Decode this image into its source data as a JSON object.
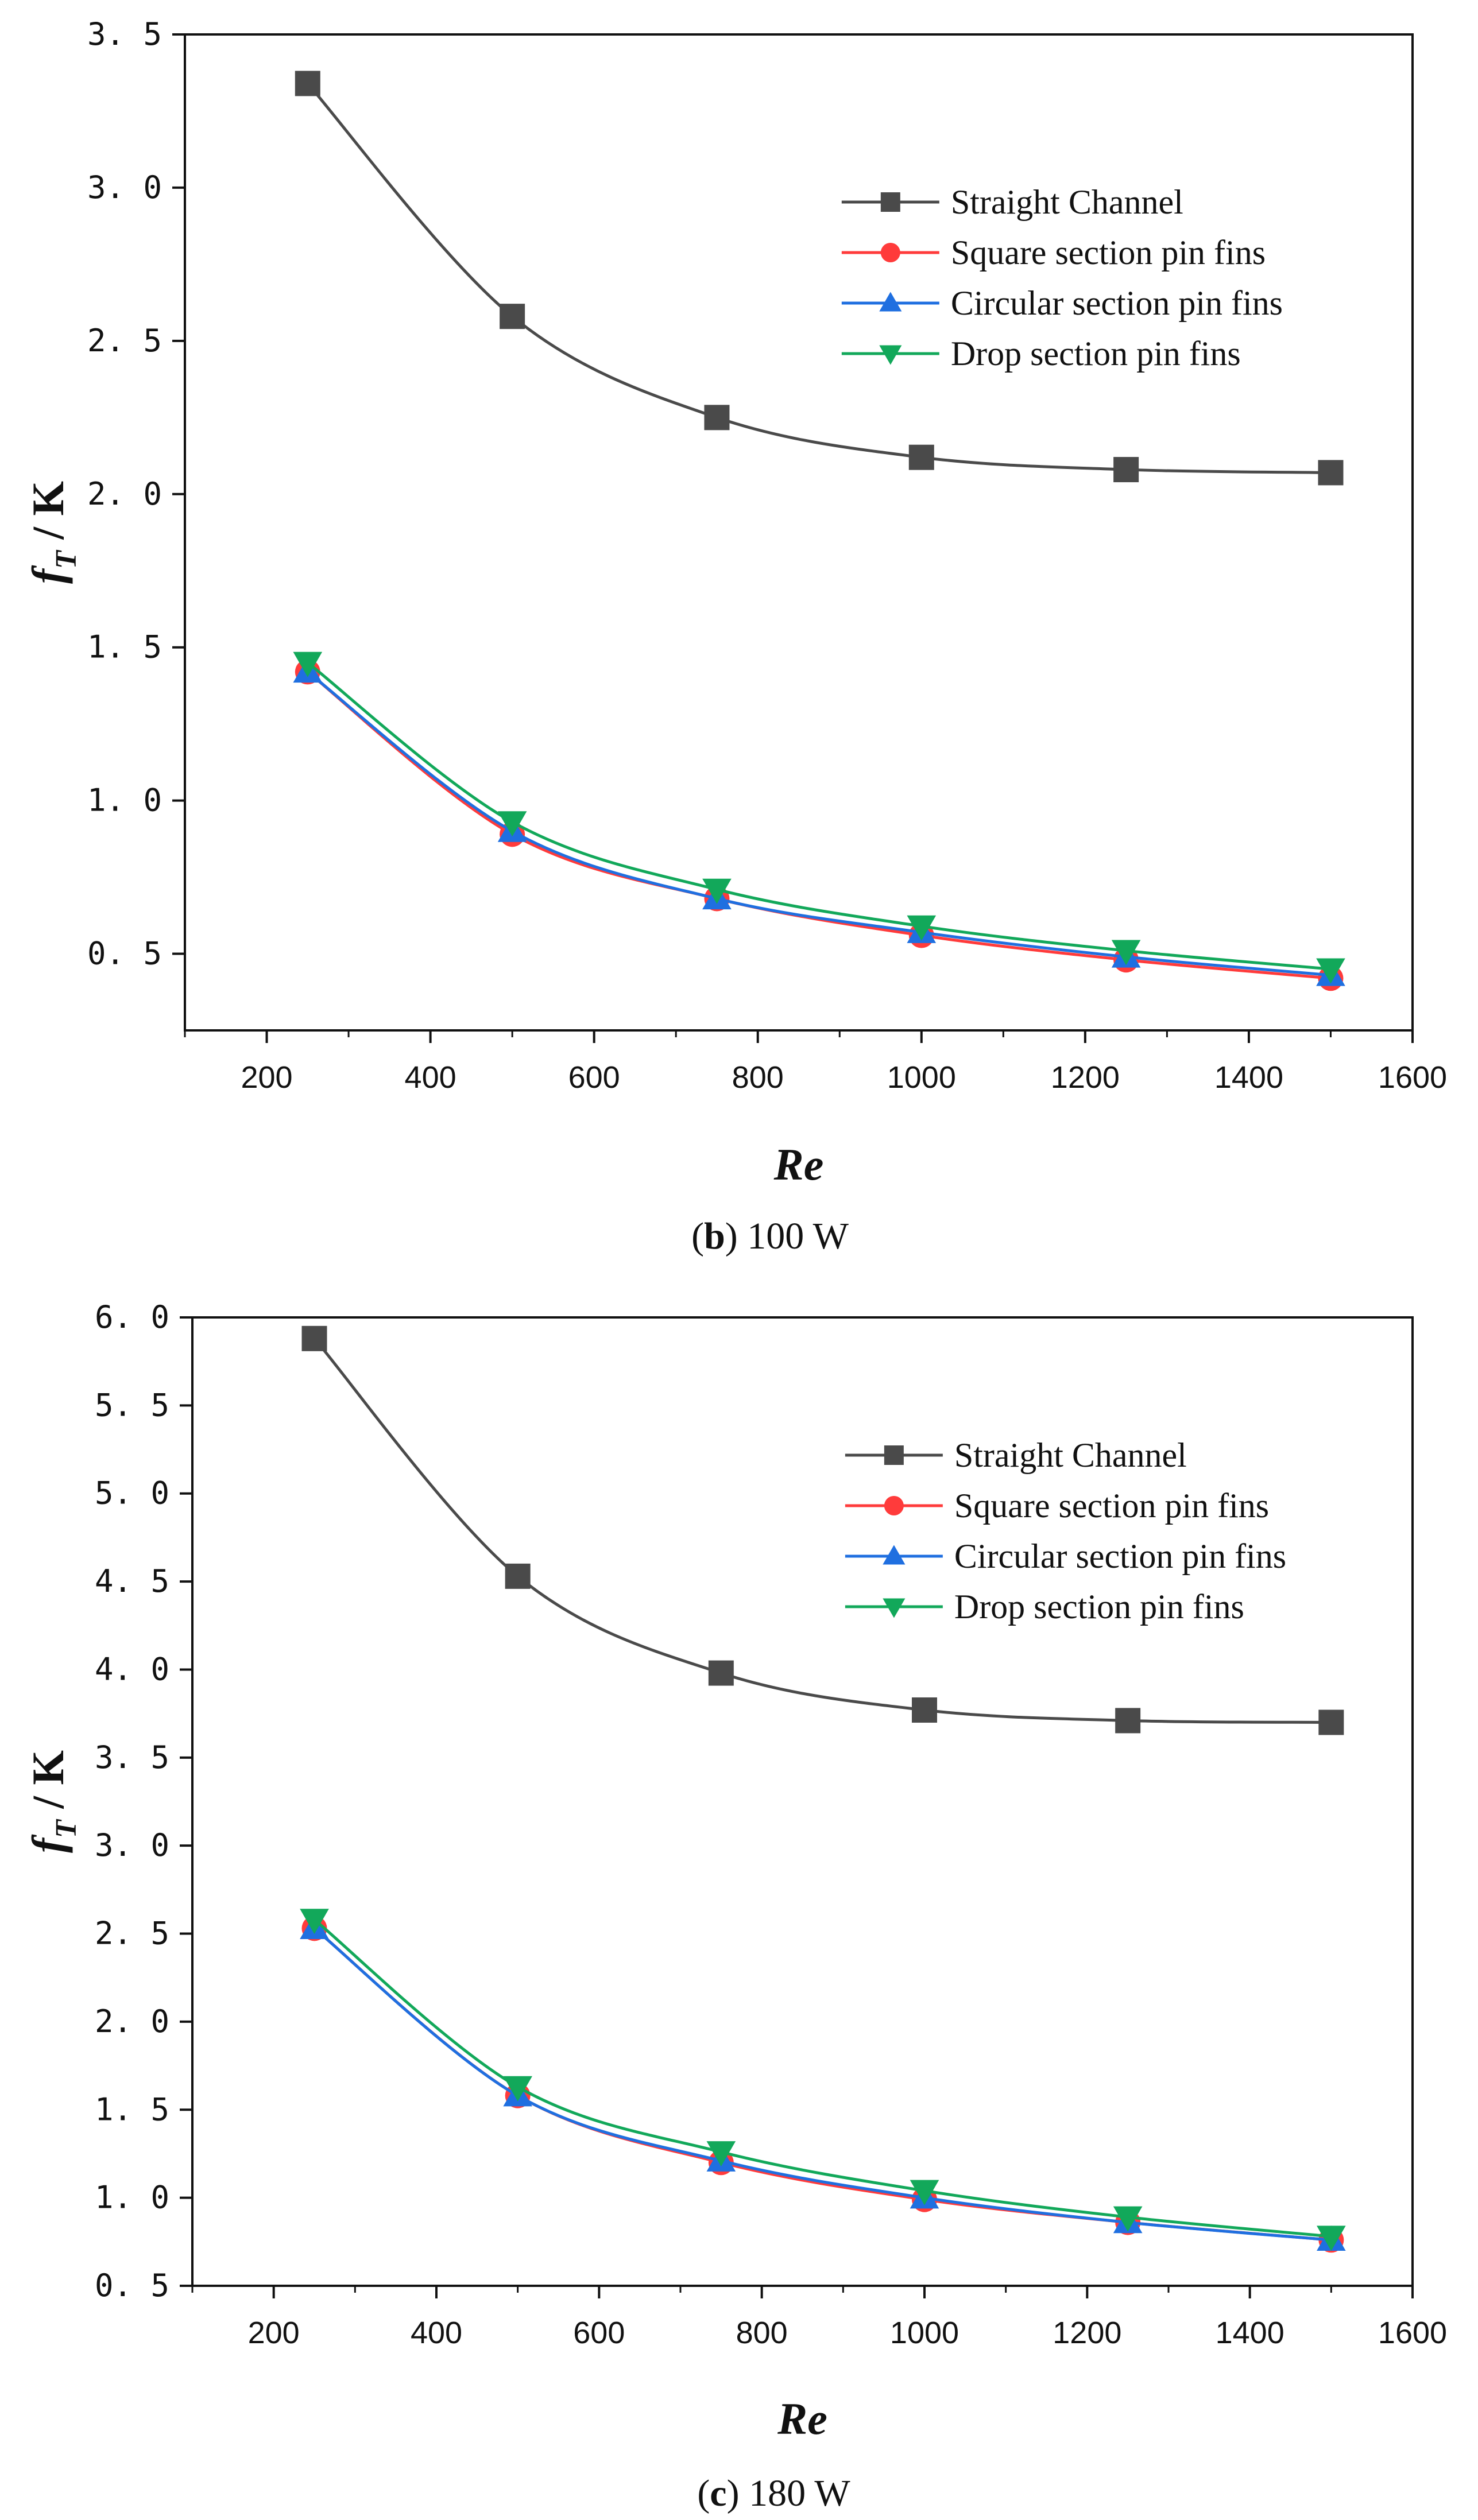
{
  "chart_data": [
    {
      "type": "line",
      "caption_letter": "b",
      "caption_rest": " 100 W",
      "xlabel": "Re",
      "ylabel_f": "f",
      "ylabel_sub": "T",
      "ylabel_rest": " / K",
      "xlim": [
        100,
        1600
      ],
      "ylim": [
        0.25,
        3.5
      ],
      "xticks": [
        200,
        400,
        600,
        800,
        1000,
        1200,
        1400,
        1600
      ],
      "xtick_labels": [
        "200",
        "400",
        "600",
        "800",
        "1000",
        "1200",
        "1400",
        "1600"
      ],
      "yticks": [
        0.5,
        1.0,
        1.5,
        2.0,
        2.5,
        3.0,
        3.5
      ],
      "ytick_labels": [
        "0. 5",
        "1. 0",
        "1. 5",
        "2. 0",
        "2. 5",
        "3. 0",
        "3. 5"
      ],
      "legend_position": "top-right",
      "x": [
        250,
        500,
        750,
        1000,
        1250,
        1500
      ],
      "series": [
        {
          "name": "Straight Channel",
          "marker": "square",
          "color": "#4a4a4a",
          "values": [
            3.34,
            2.58,
            2.25,
            2.12,
            2.08,
            2.07
          ]
        },
        {
          "name": "Square section pin fins",
          "marker": "circle",
          "color": "#ff3b3b",
          "values": [
            1.42,
            0.89,
            0.68,
            0.56,
            0.48,
            0.42
          ]
        },
        {
          "name": "Circular section pin fins",
          "marker": "triangle-up",
          "color": "#1f6fe0",
          "values": [
            1.42,
            0.9,
            0.68,
            0.57,
            0.49,
            0.43
          ]
        },
        {
          "name": "Drop section pin fins",
          "marker": "triangle-down",
          "color": "#12a85a",
          "values": [
            1.45,
            0.93,
            0.71,
            0.59,
            0.51,
            0.45
          ]
        }
      ]
    },
    {
      "type": "line",
      "caption_letter": "c",
      "caption_rest": " 180 W",
      "xlabel": "Re",
      "ylabel_f": "f",
      "ylabel_sub": "T",
      "ylabel_rest": " / K",
      "xlim": [
        100,
        1600
      ],
      "ylim": [
        0.5,
        6.0
      ],
      "xticks": [
        200,
        400,
        600,
        800,
        1000,
        1200,
        1400,
        1600
      ],
      "xtick_labels": [
        "200",
        "400",
        "600",
        "800",
        "1000",
        "1200",
        "1400",
        "1600"
      ],
      "yticks": [
        0.5,
        1.0,
        1.5,
        2.0,
        2.5,
        3.0,
        3.5,
        4.0,
        4.5,
        5.0,
        5.5,
        6.0
      ],
      "ytick_labels": [
        "0. 5",
        "1. 0",
        "1. 5",
        "2. 0",
        "2. 5",
        "3. 0",
        "3. 5",
        "4. 0",
        "4. 5",
        "5. 0",
        "5. 5",
        "6. 0"
      ],
      "legend_position": "top-right",
      "x": [
        250,
        500,
        750,
        1000,
        1250,
        1500
      ],
      "series": [
        {
          "name": "Straight Channel",
          "marker": "square",
          "color": "#4a4a4a",
          "values": [
            5.88,
            4.53,
            3.98,
            3.77,
            3.71,
            3.7
          ]
        },
        {
          "name": "Square section pin fins",
          "marker": "circle",
          "color": "#ff3b3b",
          "values": [
            2.53,
            1.58,
            1.2,
            0.99,
            0.86,
            0.76
          ]
        },
        {
          "name": "Circular section pin fins",
          "marker": "triangle-up",
          "color": "#1f6fe0",
          "values": [
            2.53,
            1.58,
            1.21,
            1.0,
            0.86,
            0.76
          ]
        },
        {
          "name": "Drop section pin fins",
          "marker": "triangle-down",
          "color": "#12a85a",
          "values": [
            2.58,
            1.63,
            1.26,
            1.04,
            0.89,
            0.78
          ]
        }
      ]
    }
  ]
}
